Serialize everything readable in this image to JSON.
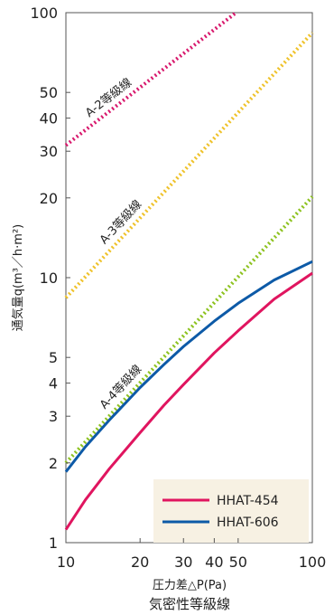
{
  "chart_data": {
    "type": "line",
    "x_scale": "log",
    "y_scale": "log",
    "xlim": [
      10,
      100
    ],
    "ylim": [
      1,
      100
    ],
    "xticks": [
      10,
      20,
      30,
      40,
      50,
      100
    ],
    "yticks": [
      1,
      2,
      3,
      4,
      5,
      10,
      20,
      30,
      40,
      50,
      100
    ],
    "xticks_labels": [
      "10",
      "20",
      "30",
      "40",
      "50",
      "100"
    ],
    "yticks_labels": [
      "1",
      "2",
      "3",
      "4",
      "5",
      "10",
      "20",
      "30",
      "40",
      "50",
      "100"
    ],
    "xlabel": "圧力差△P(Pa)",
    "ylabel": "通気量q(m³／h·m²)",
    "caption": "気密性等級線",
    "grid": false,
    "legend_position": "bottom-right",
    "reference_lines": [
      {
        "label": "A-2等級線",
        "color": "#d8176c",
        "style": "dotted",
        "x": [
          10,
          49
        ],
        "y": [
          31.6,
          100
        ]
      },
      {
        "label": "A-3等級線",
        "color": "#efc22a",
        "style": "dotted",
        "x": [
          10,
          100
        ],
        "y": [
          8.4,
          84
        ]
      },
      {
        "label": "A-4等級線",
        "color": "#8dc21f",
        "style": "dotted",
        "x": [
          10,
          100
        ],
        "y": [
          2.0,
          20.2
        ]
      }
    ],
    "series": [
      {
        "name": "HHAT-454",
        "color": "#e0155f",
        "x": [
          10,
          12,
          15,
          20,
          25,
          30,
          40,
          50,
          70,
          100
        ],
        "y": [
          1.12,
          1.45,
          1.9,
          2.6,
          3.3,
          3.95,
          5.2,
          6.3,
          8.3,
          10.4
        ]
      },
      {
        "name": "HHAT-606",
        "color": "#0d5aa7",
        "x": [
          10,
          12,
          15,
          20,
          25,
          30,
          40,
          50,
          70,
          100
        ],
        "y": [
          1.85,
          2.3,
          2.9,
          3.85,
          4.7,
          5.5,
          6.85,
          8.0,
          9.8,
          11.5
        ]
      }
    ]
  }
}
